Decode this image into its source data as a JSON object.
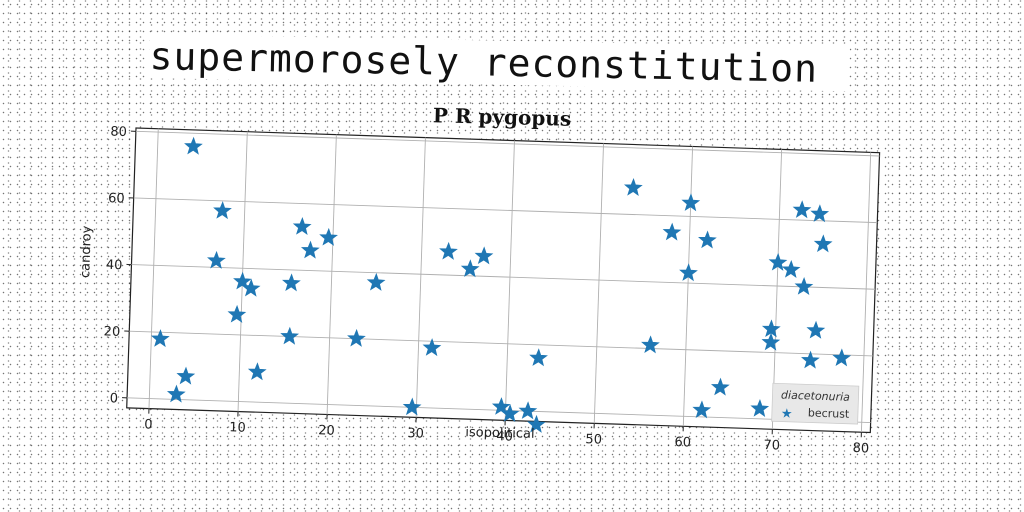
{
  "heading": "supermorosely reconstitution",
  "chart_data": {
    "type": "scatter",
    "title": "P R pygopus",
    "xlabel": "isopolitical",
    "ylabel": "candroy",
    "xlim": [
      -2.5,
      81
    ],
    "ylim": [
      -3,
      81
    ],
    "xticks": [
      "0",
      "10",
      "20",
      "30",
      "40",
      "50",
      "60",
      "70",
      "80"
    ],
    "yticks": [
      "0",
      "20",
      "40",
      "60",
      "80"
    ],
    "grid": true,
    "legend": {
      "title": "diacetonuria",
      "placement": "lower-right"
    },
    "series": [
      {
        "name": "becrust",
        "marker": "star",
        "color": "#1f77b4",
        "points": [
          [
            4,
            76
          ],
          [
            7.5,
            57
          ],
          [
            7,
            42
          ],
          [
            10,
            36
          ],
          [
            11,
            34
          ],
          [
            9.5,
            26
          ],
          [
            1,
            18
          ],
          [
            4,
            7
          ],
          [
            3,
            1.5
          ],
          [
            12,
            9
          ],
          [
            15.5,
            36
          ],
          [
            15.5,
            20
          ],
          [
            16.5,
            53
          ],
          [
            17.5,
            46
          ],
          [
            19.5,
            50
          ],
          [
            25,
            37
          ],
          [
            23,
            20
          ],
          [
            29.5,
            0
          ],
          [
            31.5,
            18
          ],
          [
            33,
            47
          ],
          [
            35.5,
            42
          ],
          [
            37,
            46
          ],
          [
            39.5,
            1
          ],
          [
            40.5,
            -1
          ],
          [
            42.5,
            0
          ],
          [
            43.5,
            -4
          ],
          [
            43.5,
            16
          ],
          [
            53.5,
            68
          ],
          [
            56,
            21
          ],
          [
            58,
            55
          ],
          [
            60,
            64
          ],
          [
            60,
            43
          ],
          [
            62,
            53
          ],
          [
            62,
            2
          ],
          [
            64,
            9
          ],
          [
            68.5,
            3
          ],
          [
            69.5,
            27
          ],
          [
            69.5,
            23
          ],
          [
            70,
            47
          ],
          [
            71.5,
            45
          ],
          [
            72.5,
            63
          ],
          [
            73,
            40
          ],
          [
            73,
            3
          ],
          [
            74,
            18
          ],
          [
            74.5,
            27
          ],
          [
            74.5,
            62
          ],
          [
            75,
            53
          ],
          [
            77.5,
            19
          ]
        ]
      }
    ]
  }
}
